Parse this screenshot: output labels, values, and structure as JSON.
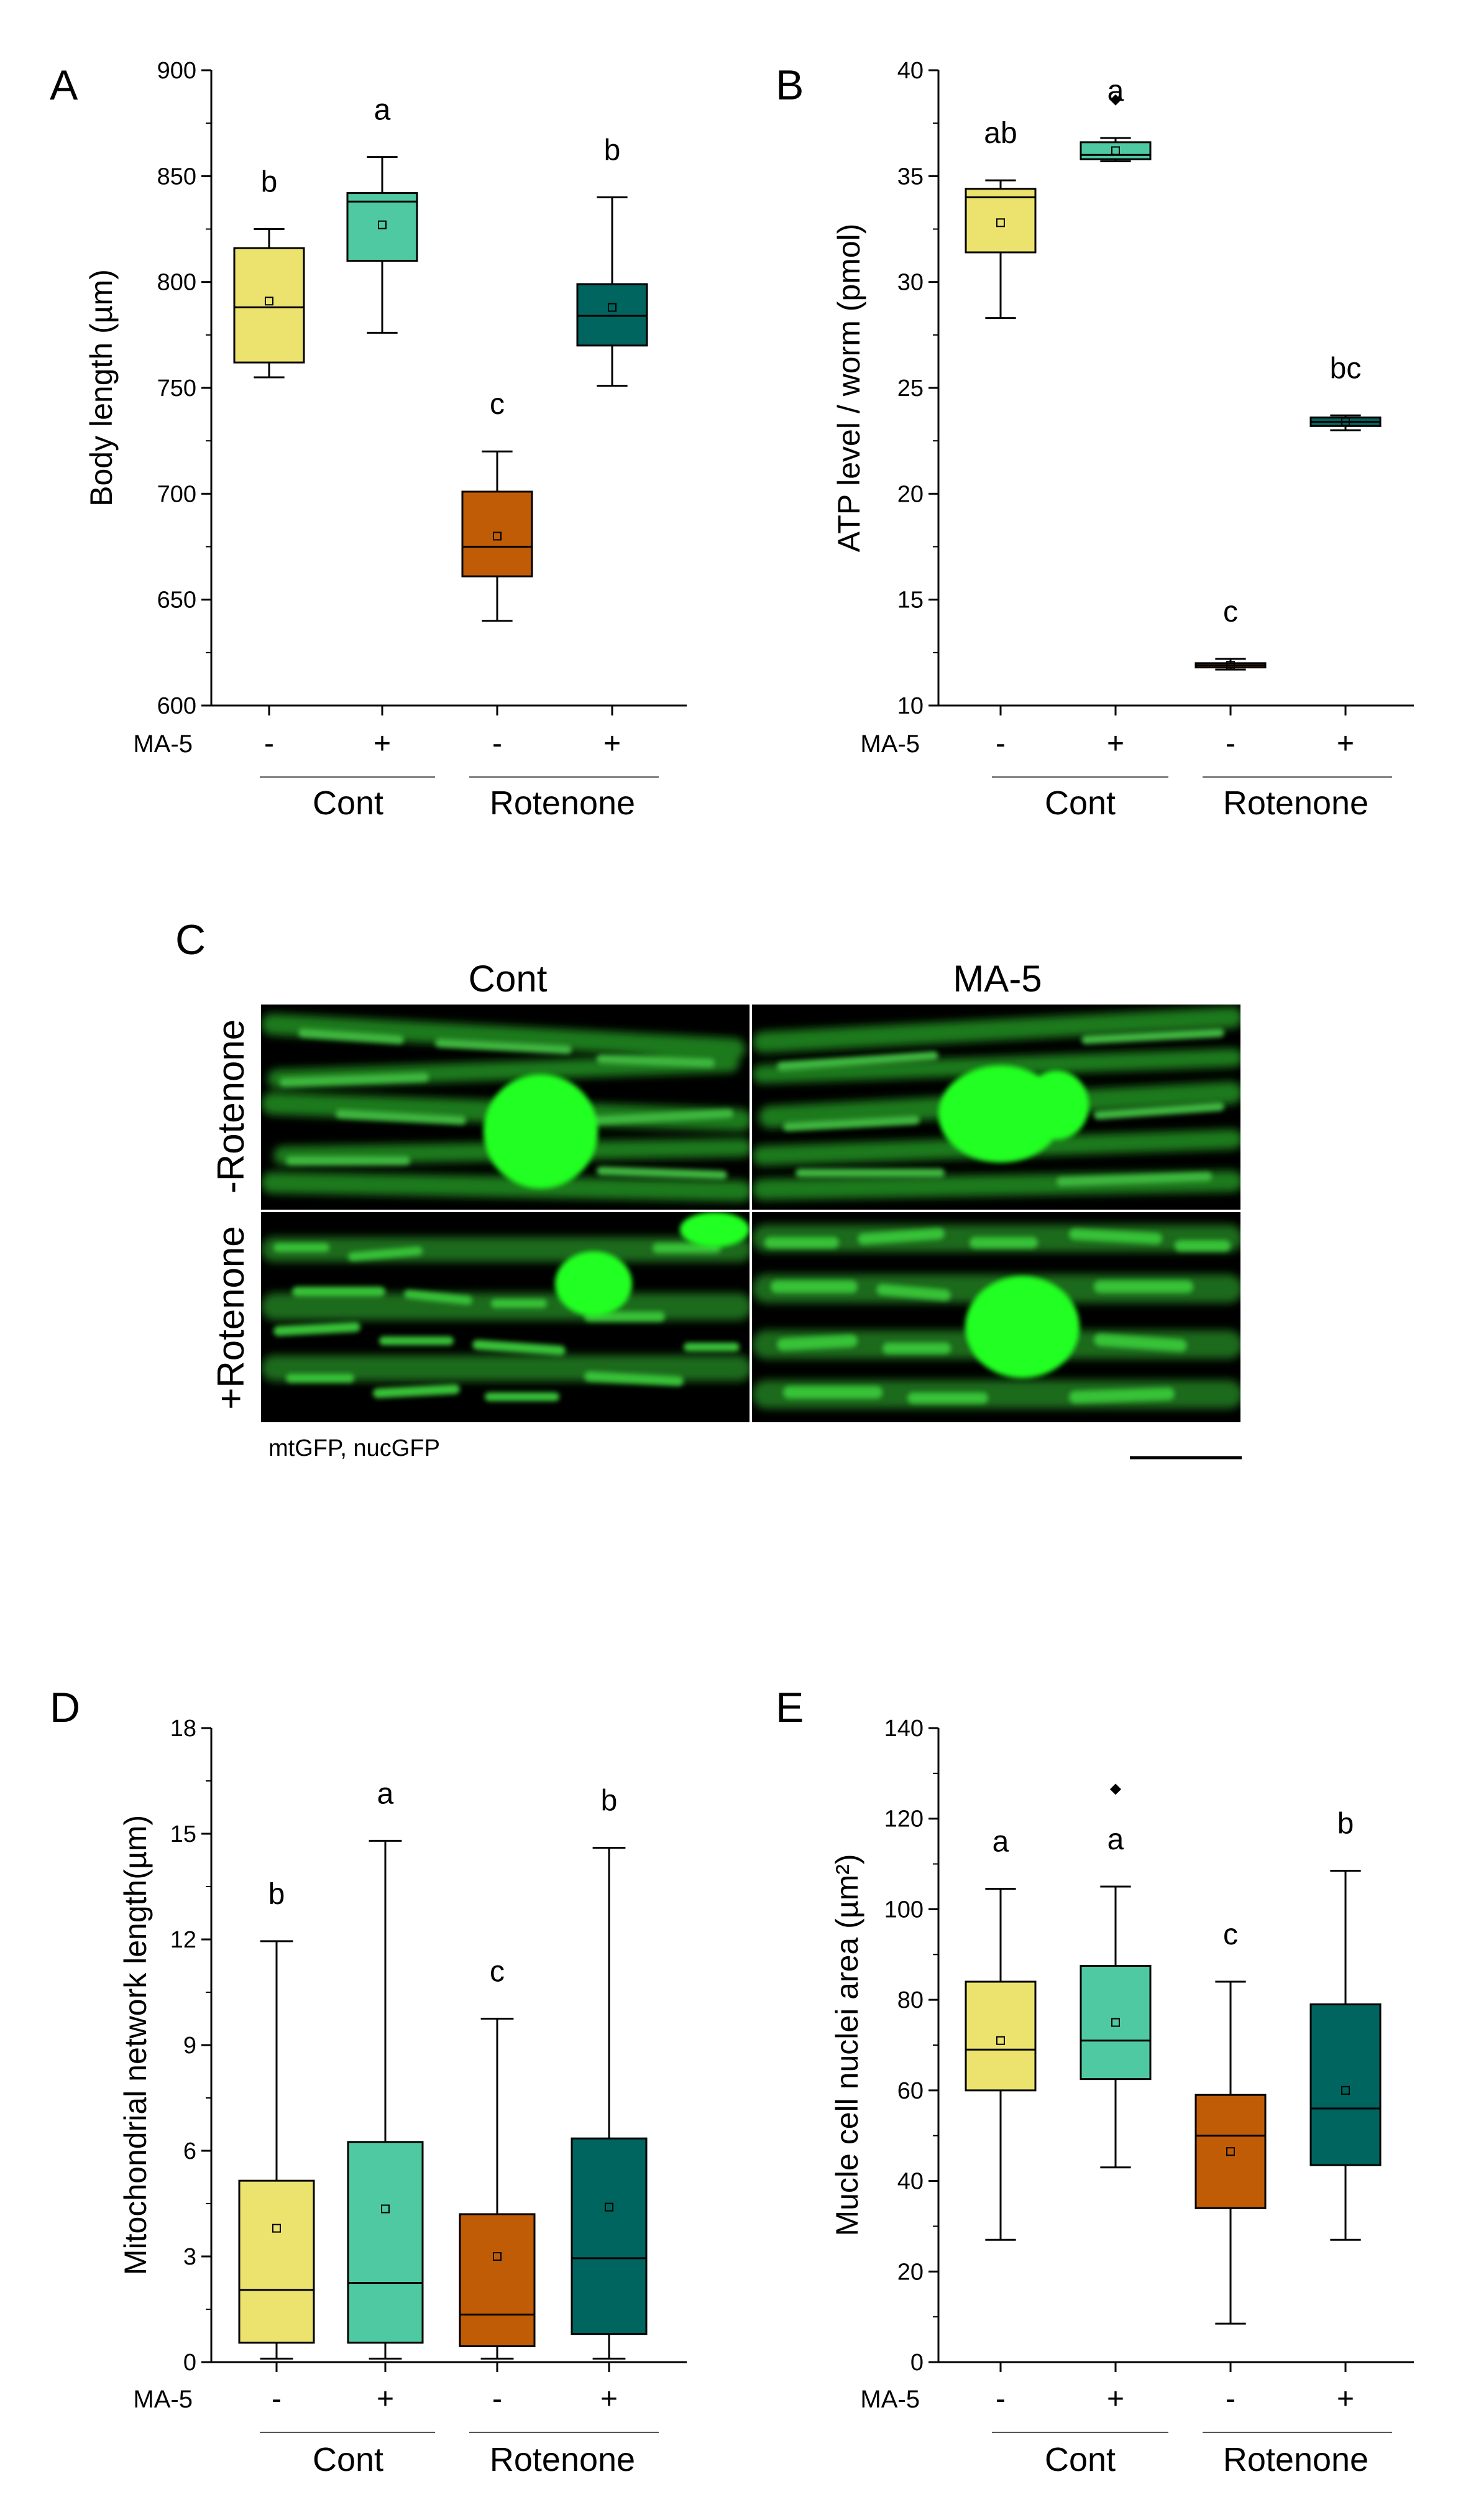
{
  "chart_data": [
    {
      "panel": "A",
      "type": "box",
      "ylabel": "Body length (µm)",
      "ylim": [
        600,
        900
      ],
      "yticks": [
        600,
        650,
        700,
        750,
        800,
        850,
        900
      ],
      "treatment_label": "MA-5",
      "treatment_signs": [
        "-",
        "+",
        "-",
        "+"
      ],
      "groups": [
        "Cont",
        "Rotenone"
      ],
      "boxes": [
        {
          "whisker_low": 755,
          "q1": 762,
          "median": 788,
          "q3": 816,
          "whisker_high": 825,
          "mean": 791,
          "letter": "b",
          "color": "#ece36f"
        },
        {
          "whisker_low": 776,
          "q1": 810,
          "median": 838,
          "q3": 842,
          "whisker_high": 859,
          "mean": 827,
          "letter": "a",
          "color": "#4fc9a2"
        },
        {
          "whisker_low": 640,
          "q1": 661,
          "median": 675,
          "q3": 701,
          "whisker_high": 720,
          "mean": 680,
          "letter": "c",
          "color": "#c15c06"
        },
        {
          "whisker_low": 751,
          "q1": 770,
          "median": 784,
          "q3": 799,
          "whisker_high": 840,
          "mean": 788,
          "letter": "b",
          "color": "#00645f"
        }
      ]
    },
    {
      "panel": "B",
      "type": "box",
      "ylabel": "ATP level / worm (pmol)",
      "ylim": [
        10,
        40
      ],
      "yticks": [
        10,
        15,
        20,
        25,
        30,
        35,
        40
      ],
      "treatment_label": "MA-5",
      "treatment_signs": [
        "-",
        "+",
        "-",
        "+"
      ],
      "groups": [
        "Cont",
        "Rotenone"
      ],
      "boxes": [
        {
          "whisker_low": 28.3,
          "q1": 31.4,
          "median": 34.0,
          "q3": 34.4,
          "whisker_high": 34.8,
          "mean": 32.8,
          "letter": "ab",
          "color": "#ece36f"
        },
        {
          "whisker_low": 35.7,
          "q1": 35.8,
          "median": 36.0,
          "q3": 36.6,
          "whisker_high": 36.8,
          "mean": 36.2,
          "outliers": [
            38.6
          ],
          "letter": "a",
          "color": "#4fc9a2"
        },
        {
          "whisker_low": 11.7,
          "q1": 11.8,
          "median": 11.9,
          "q3": 12.0,
          "whisker_high": 12.2,
          "mean": 11.9,
          "letter": "c",
          "color": "#c15c06"
        },
        {
          "whisker_low": 23.0,
          "q1": 23.2,
          "median": 23.4,
          "q3": 23.6,
          "whisker_high": 23.7,
          "mean": 23.4,
          "letter": "bc",
          "color": "#00645f"
        }
      ]
    },
    {
      "panel": "D",
      "type": "box",
      "ylabel": "Mitochondrial network length(µm)",
      "ylim": [
        0,
        18
      ],
      "yticks": [
        0,
        3,
        6,
        9,
        12,
        15,
        18
      ],
      "treatment_label": "MA-5",
      "treatment_signs": [
        "-",
        "+",
        "-",
        "+"
      ],
      "groups": [
        "Cont",
        "Rotenone"
      ],
      "boxes": [
        {
          "whisker_low": 0.1,
          "q1": 0.55,
          "median": 2.05,
          "q3": 5.15,
          "whisker_high": 11.95,
          "mean": 3.8,
          "letter": "b",
          "color": "#ece36f"
        },
        {
          "whisker_low": 0.1,
          "q1": 0.55,
          "median": 2.25,
          "q3": 6.25,
          "whisker_high": 14.8,
          "mean": 4.35,
          "letter": "a",
          "color": "#4fc9a2"
        },
        {
          "whisker_low": 0.1,
          "q1": 0.45,
          "median": 1.35,
          "q3": 4.2,
          "whisker_high": 9.75,
          "mean": 3.0,
          "letter": "c",
          "color": "#c15c06"
        },
        {
          "whisker_low": 0.1,
          "q1": 0.8,
          "median": 2.95,
          "q3": 6.35,
          "whisker_high": 14.6,
          "mean": 4.4,
          "letter": "b",
          "color": "#00645f"
        }
      ]
    },
    {
      "panel": "E",
      "type": "box",
      "ylabel_main": "Mucle cell nuclei area (µm",
      "ylabel_sup": "2",
      "ylabel_end": ")",
      "ylim": [
        0,
        140
      ],
      "yticks": [
        0,
        20,
        40,
        60,
        80,
        100,
        120,
        140
      ],
      "treatment_label": "MA-5",
      "treatment_signs": [
        "-",
        "+",
        "-",
        "+"
      ],
      "groups": [
        "Cont",
        "Rotenone"
      ],
      "boxes": [
        {
          "whisker_low": 27,
          "q1": 60,
          "median": 69,
          "q3": 84,
          "whisker_high": 104.5,
          "mean": 71,
          "letter": "a",
          "color": "#ece36f"
        },
        {
          "whisker_low": 43,
          "q1": 62.5,
          "median": 71,
          "q3": 87.5,
          "whisker_high": 105,
          "mean": 75,
          "outliers": [
            126.5
          ],
          "letter": "a",
          "color": "#4fc9a2"
        },
        {
          "whisker_low": 8.5,
          "q1": 34,
          "median": 50,
          "q3": 59,
          "whisker_high": 84,
          "mean": 46.5,
          "letter": "c",
          "color": "#c15c06"
        },
        {
          "whisker_low": 27,
          "q1": 43.5,
          "median": 56,
          "q3": 79,
          "whisker_high": 108.5,
          "mean": 60,
          "letter": "b",
          "color": "#00645f"
        }
      ]
    }
  ],
  "panels": {
    "A": "A",
    "B": "B",
    "C": "C",
    "D": "D",
    "E": "E"
  },
  "micrograph": {
    "col_labels": [
      "Cont",
      "MA-5"
    ],
    "row_labels": [
      "-Rotenone",
      "+Rotenone"
    ],
    "caption": "mtGFP, nucGFP"
  }
}
